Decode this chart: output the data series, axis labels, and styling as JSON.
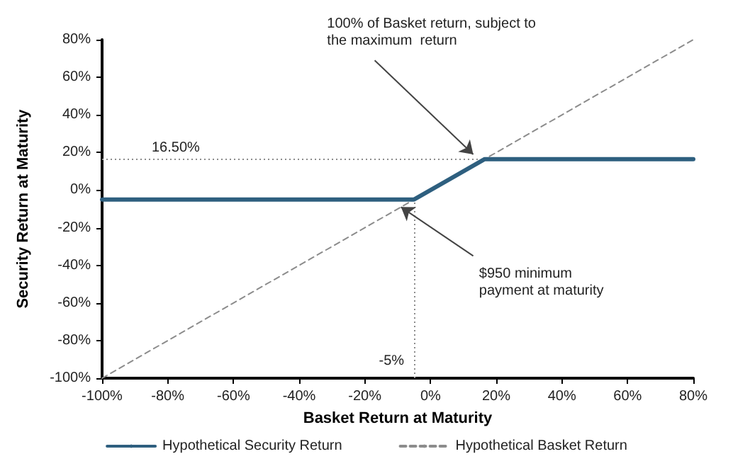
{
  "chart_data": {
    "type": "line",
    "xlabel": "Basket Return at Maturity",
    "ylabel": "Security Return at Maturity",
    "x": [
      -100,
      -5,
      16.5,
      80
    ],
    "series": [
      {
        "name": "Hypothetical Security Return",
        "color": "#2e5f7f",
        "values": [
          -5,
          -5,
          16.5,
          16.5
        ],
        "line_style": "solid"
      },
      {
        "name": "Hypothetical Basket Return",
        "color": "#8c8c8c",
        "values": [
          -100,
          -5,
          16.5,
          80
        ],
        "line_style": "dashed"
      }
    ],
    "xlim": [
      -100,
      80
    ],
    "ylim": [
      -100,
      80
    ],
    "xticks": [
      {
        "value": -100,
        "label": "-100%"
      },
      {
        "value": -80,
        "label": "-80%"
      },
      {
        "value": -60,
        "label": "-60%"
      },
      {
        "value": -40,
        "label": "-40%"
      },
      {
        "value": -20,
        "label": "-20%"
      },
      {
        "value": 0,
        "label": "0%"
      },
      {
        "value": 20,
        "label": "20%"
      },
      {
        "value": 40,
        "label": "40%"
      },
      {
        "value": 60,
        "label": "60%"
      },
      {
        "value": 80,
        "label": "80%"
      }
    ],
    "yticks": [
      {
        "value": -100,
        "label": "-100%"
      },
      {
        "value": -80,
        "label": "-80%"
      },
      {
        "value": -60,
        "label": "-60%"
      },
      {
        "value": -40,
        "label": "-40%"
      },
      {
        "value": -20,
        "label": "-20%"
      },
      {
        "value": 0,
        "label": "0%"
      },
      {
        "value": 20,
        "label": "20%"
      },
      {
        "value": 40,
        "label": "40%"
      },
      {
        "value": 60,
        "label": "60%"
      },
      {
        "value": 80,
        "label": "80%"
      }
    ],
    "ref_lines": [
      {
        "axis": "y",
        "value": 16.5,
        "label": "16.50%",
        "color": "#8c8c8c",
        "line_style": "dotted"
      },
      {
        "axis": "x",
        "value": -5,
        "label": "-5%",
        "color": "#8c8c8c",
        "line_style": "dotted"
      }
    ],
    "annotations": [
      {
        "text": "100% of Basket return, subject to\nthe maximum  return",
        "x": 13,
        "y": 19
      },
      {
        "text": "$950 minimum\npayment at maturity",
        "x": -9,
        "y": -9
      }
    ],
    "grid": false,
    "legend": "bottom",
    "marker": "none"
  }
}
